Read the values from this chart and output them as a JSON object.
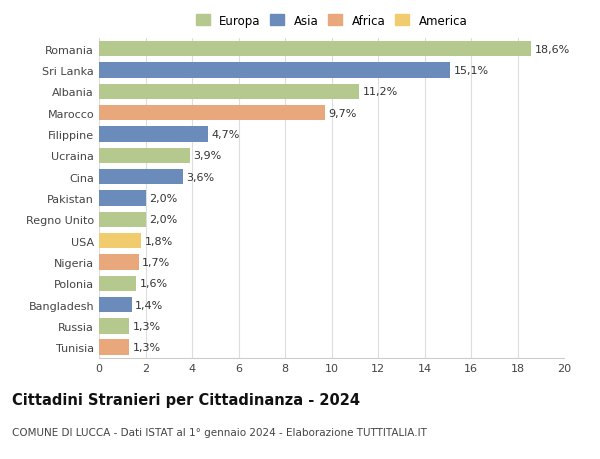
{
  "categories": [
    "Tunisia",
    "Russia",
    "Bangladesh",
    "Polonia",
    "Nigeria",
    "USA",
    "Regno Unito",
    "Pakistan",
    "Cina",
    "Ucraina",
    "Filippine",
    "Marocco",
    "Albania",
    "Sri Lanka",
    "Romania"
  ],
  "values": [
    1.3,
    1.3,
    1.4,
    1.6,
    1.7,
    1.8,
    2.0,
    2.0,
    3.6,
    3.9,
    4.7,
    9.7,
    11.2,
    15.1,
    18.6
  ],
  "colors": [
    "#e8a87c",
    "#b5c98e",
    "#6b8cba",
    "#b5c98e",
    "#e8a87c",
    "#f0cc6e",
    "#b5c98e",
    "#6b8cba",
    "#6b8cba",
    "#b5c98e",
    "#6b8cba",
    "#e8a87c",
    "#b5c98e",
    "#6b8cba",
    "#b5c98e"
  ],
  "labels": [
    "1,3%",
    "1,3%",
    "1,4%",
    "1,6%",
    "1,7%",
    "1,8%",
    "2,0%",
    "2,0%",
    "3,6%",
    "3,9%",
    "4,7%",
    "9,7%",
    "11,2%",
    "15,1%",
    "18,6%"
  ],
  "legend": [
    {
      "label": "Europa",
      "color": "#b5c98e"
    },
    {
      "label": "Asia",
      "color": "#6b8cba"
    },
    {
      "label": "Africa",
      "color": "#e8a87c"
    },
    {
      "label": "America",
      "color": "#f0cc6e"
    }
  ],
  "title": "Cittadini Stranieri per Cittadinanza - 2024",
  "subtitle": "COMUNE DI LUCCA - Dati ISTAT al 1° gennaio 2024 - Elaborazione TUTTITALIA.IT",
  "xlim": [
    0,
    20
  ],
  "xticks": [
    0,
    2,
    4,
    6,
    8,
    10,
    12,
    14,
    16,
    18,
    20
  ],
  "background_color": "#ffffff",
  "grid_color": "#dddddd",
  "bar_height": 0.72,
  "label_fontsize": 8.0,
  "tick_fontsize": 8.0,
  "title_fontsize": 10.5,
  "subtitle_fontsize": 7.5,
  "legend_fontsize": 8.5
}
